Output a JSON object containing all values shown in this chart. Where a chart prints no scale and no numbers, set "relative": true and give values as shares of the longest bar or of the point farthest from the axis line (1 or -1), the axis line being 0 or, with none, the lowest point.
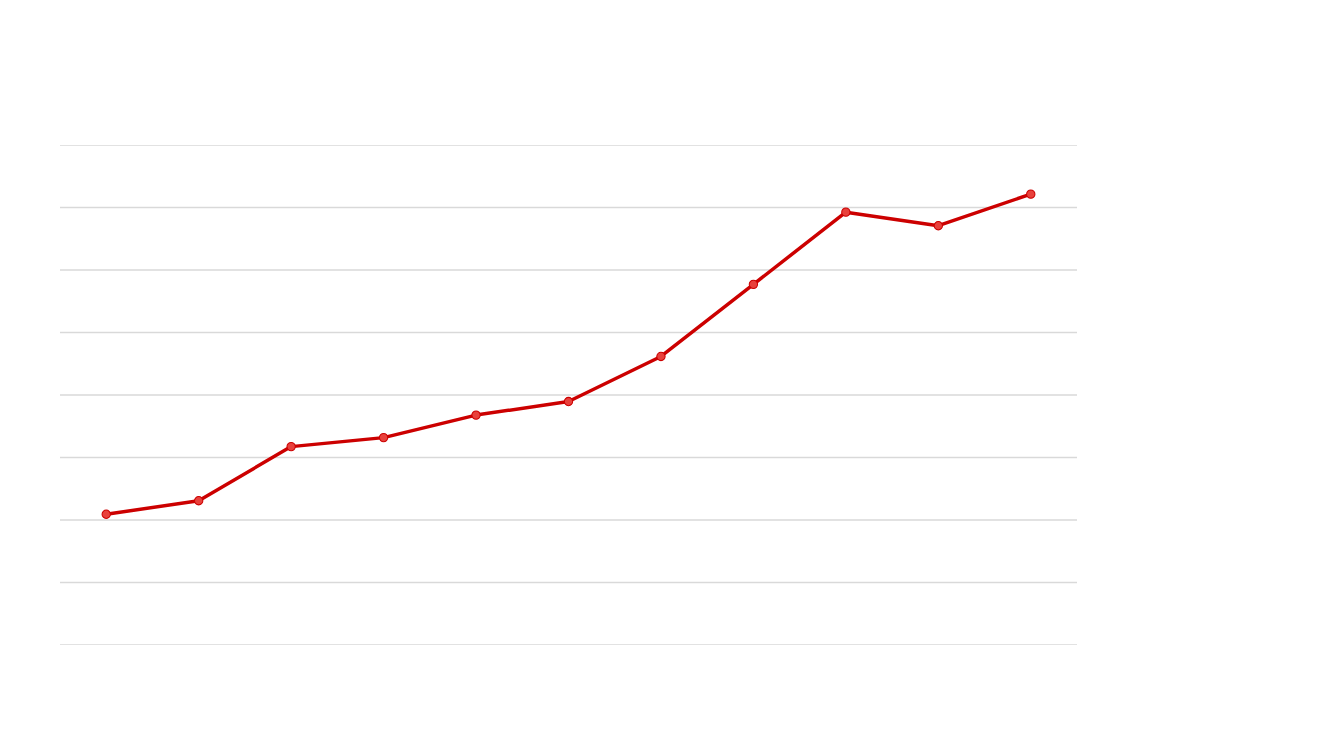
{
  "chart_data": {
    "type": "line",
    "relative": true,
    "categories": [
      null,
      null,
      null,
      null,
      null,
      null,
      null,
      null,
      null,
      null,
      null
    ],
    "series": [
      {
        "color": "#cc0000",
        "values": [
          0.29,
          0.32,
          0.44,
          0.46,
          0.51,
          0.54,
          0.64,
          0.8,
          0.96,
          0.93,
          1
        ]
      }
    ],
    "marker": "circle",
    "line_style": "solid",
    "grid": "y"
  }
}
